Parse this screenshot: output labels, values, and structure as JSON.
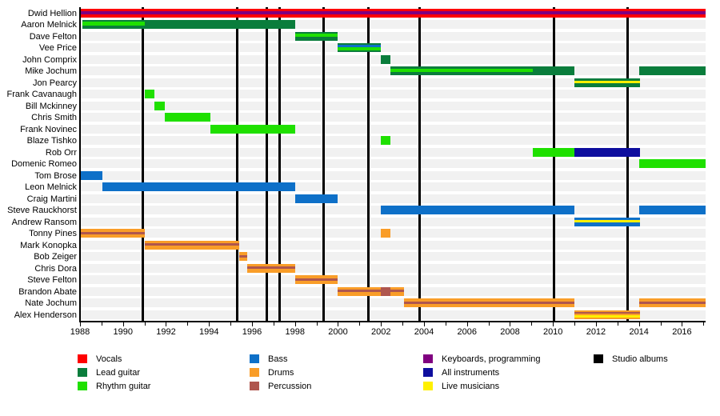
{
  "chart_data": {
    "type": "timeline",
    "description": "Band members timeline (gantt-style) with roles by color, 1988-2017, vertical black lines mark studio albums",
    "x_axis": {
      "start_year": 1988,
      "end_year": 2017.1,
      "label_years": [
        1988,
        1990,
        1992,
        1994,
        1996,
        1998,
        2000,
        2002,
        2004,
        2006,
        2008,
        2010,
        2012,
        2014,
        2016
      ],
      "minor_tick_every": 1
    },
    "colors": {
      "vocals": "#ff0000",
      "lead": "#0a7d3c",
      "rhythm": "#1fe000",
      "bass": "#0e70c8",
      "drums": "#f99d28",
      "perc": "#af564e",
      "keys": "#800080",
      "allinstr": "#0e0e9e",
      "live": "#fff000",
      "album": "#000000",
      "row_band": "#f1f1f1"
    },
    "legend": [
      {
        "label": "Vocals",
        "color": "vocals"
      },
      {
        "label": "Lead guitar",
        "color": "lead"
      },
      {
        "label": "Rhythm guitar",
        "color": "rhythm"
      },
      {
        "label": "Bass",
        "color": "bass"
      },
      {
        "label": "Drums",
        "color": "drums"
      },
      {
        "label": "Percussion",
        "color": "perc"
      },
      {
        "label": "Keyboards, programming",
        "color": "keys"
      },
      {
        "label": "All instruments",
        "color": "allinstr"
      },
      {
        "label": "Live musicians",
        "color": "live"
      },
      {
        "label": "Studio albums",
        "color": "album"
      }
    ],
    "album_lines_years": [
      1990.92,
      1995.3,
      1996.68,
      1997.3,
      1999.32,
      2001.4,
      2003.78,
      2010.05,
      2013.48
    ],
    "members": [
      {
        "name": "Dwid Hellion",
        "segments": [
          {
            "start": 1988,
            "end": 2017.1,
            "layers": [
              [
                "vocals",
                3.5
              ],
              [
                "keys",
                3.5
              ],
              [
                "vocals",
                4
              ]
            ]
          }
        ]
      },
      {
        "name": "Aaron Melnick",
        "segments": [
          {
            "start": 1988.1,
            "end": 1991,
            "layers": [
              [
                "lead",
                1.5
              ],
              [
                "rhythm",
                5
              ],
              [
                "lead",
                4.5
              ]
            ]
          },
          {
            "start": 1991,
            "end": 1998,
            "layers": [
              [
                "lead",
                11
              ]
            ]
          }
        ]
      },
      {
        "name": "Dave Felton",
        "segments": [
          {
            "start": 1998,
            "end": 2000,
            "layers": [
              [
                "lead",
                2
              ],
              [
                "rhythm",
                4
              ],
              [
                "lead",
                5
              ]
            ]
          }
        ]
      },
      {
        "name": "Vee Price",
        "segments": [
          {
            "start": 2000,
            "end": 2002,
            "layers": [
              [
                "lead",
                2
              ],
              [
                "bass",
                3
              ],
              [
                "rhythm",
                3.5
              ],
              [
                "lead",
                2.5
              ]
            ]
          }
        ]
      },
      {
        "name": "John Comprix",
        "segments": [
          {
            "start": 2002,
            "end": 2002.45,
            "layers": [
              [
                "lead",
                11
              ]
            ]
          }
        ]
      },
      {
        "name": "Mike Jochum",
        "segments": [
          {
            "start": 2002.45,
            "end": 2009.05,
            "layers": [
              [
                "lead",
                2.5
              ],
              [
                "rhythm",
                4
              ],
              [
                "lead",
                4.5
              ]
            ]
          },
          {
            "start": 2009.05,
            "end": 2011,
            "layers": [
              [
                "lead",
                11
              ]
            ]
          },
          {
            "start": 2014,
            "end": 2017.1,
            "layers": [
              [
                "lead",
                11
              ]
            ]
          }
        ]
      },
      {
        "name": "Jon Pearcy",
        "segments": [
          {
            "start": 2011,
            "end": 2014.05,
            "layers": [
              [
                "lead",
                3
              ],
              [
                "live",
                3.5
              ],
              [
                "lead",
                4.5
              ]
            ]
          }
        ]
      },
      {
        "name": "Frank Cavanaugh",
        "segments": [
          {
            "start": 1991,
            "end": 1991.45,
            "layers": [
              [
                "rhythm",
                11
              ]
            ]
          }
        ]
      },
      {
        "name": "Bill Mckinney",
        "segments": [
          {
            "start": 1991.45,
            "end": 1991.95,
            "layers": [
              [
                "rhythm",
                11
              ]
            ]
          }
        ]
      },
      {
        "name": "Chris Smith",
        "segments": [
          {
            "start": 1991.95,
            "end": 1994.05,
            "layers": [
              [
                "rhythm",
                11
              ]
            ]
          }
        ]
      },
      {
        "name": "Frank Novinec",
        "segments": [
          {
            "start": 1994.05,
            "end": 1998,
            "layers": [
              [
                "rhythm",
                11
              ]
            ]
          }
        ]
      },
      {
        "name": "Blaze Tishko",
        "segments": [
          {
            "start": 2002,
            "end": 2002.45,
            "layers": [
              [
                "rhythm",
                11
              ]
            ]
          }
        ]
      },
      {
        "name": "Rob Orr",
        "segments": [
          {
            "start": 2009.05,
            "end": 2011,
            "layers": [
              [
                "rhythm",
                11
              ]
            ]
          },
          {
            "start": 2011,
            "end": 2014.05,
            "layers": [
              [
                "allinstr",
                11
              ]
            ]
          }
        ]
      },
      {
        "name": "Domenic Romeo",
        "segments": [
          {
            "start": 2014,
            "end": 2017.1,
            "layers": [
              [
                "rhythm",
                11
              ]
            ]
          }
        ]
      },
      {
        "name": "Tom Brose",
        "segments": [
          {
            "start": 1988,
            "end": 1989.05,
            "layers": [
              [
                "bass",
                11
              ]
            ]
          }
        ]
      },
      {
        "name": "Leon Melnick",
        "segments": [
          {
            "start": 1989.05,
            "end": 1998,
            "layers": [
              [
                "bass",
                11
              ]
            ]
          }
        ]
      },
      {
        "name": "Craig Martini",
        "segments": [
          {
            "start": 1998,
            "end": 2000,
            "layers": [
              [
                "bass",
                11
              ]
            ]
          }
        ]
      },
      {
        "name": "Steve Rauckhorst",
        "segments": [
          {
            "start": 2002,
            "end": 2011,
            "layers": [
              [
                "bass",
                11
              ]
            ]
          },
          {
            "start": 2014,
            "end": 2017.1,
            "layers": [
              [
                "bass",
                11
              ]
            ]
          }
        ]
      },
      {
        "name": "Andrew Ransom",
        "segments": [
          {
            "start": 2011,
            "end": 2014.05,
            "layers": [
              [
                "bass",
                3
              ],
              [
                "live",
                3.5
              ],
              [
                "bass",
                4.5
              ]
            ]
          }
        ]
      },
      {
        "name": "Tonny Pines",
        "segments": [
          {
            "start": 1988,
            "end": 1991,
            "layers": [
              [
                "drums",
                3.5
              ],
              [
                "perc",
                3
              ],
              [
                "drums",
                4.5
              ]
            ]
          },
          {
            "start": 2002,
            "end": 2002.45,
            "layers": [
              [
                "drums",
                11
              ]
            ]
          }
        ]
      },
      {
        "name": "Mark Konopka",
        "segments": [
          {
            "start": 1991,
            "end": 1995.4,
            "layers": [
              [
                "drums",
                3.5
              ],
              [
                "perc",
                3
              ],
              [
                "drums",
                4.5
              ]
            ]
          }
        ]
      },
      {
        "name": "Bob Zeiger",
        "segments": [
          {
            "start": 1995.4,
            "end": 1995.78,
            "layers": [
              [
                "drums",
                3.5
              ],
              [
                "perc",
                3
              ],
              [
                "drums",
                4.5
              ]
            ]
          }
        ]
      },
      {
        "name": "Chris Dora",
        "segments": [
          {
            "start": 1995.78,
            "end": 1998,
            "layers": [
              [
                "drums",
                3.5
              ],
              [
                "perc",
                3
              ],
              [
                "drums",
                4.5
              ]
            ]
          }
        ]
      },
      {
        "name": "Steve Felton",
        "segments": [
          {
            "start": 1998,
            "end": 2000,
            "layers": [
              [
                "drums",
                3.5
              ],
              [
                "perc",
                3
              ],
              [
                "drums",
                4.5
              ]
            ]
          }
        ]
      },
      {
        "name": "Brandon Abate",
        "segments": [
          {
            "start": 2000,
            "end": 2003.06,
            "layers": [
              [
                "drums",
                3.5
              ],
              [
                "perc",
                3
              ],
              [
                "drums",
                4.5
              ]
            ]
          },
          {
            "start": 2002,
            "end": 2002.42,
            "layers": [
              [
                "perc",
                11
              ]
            ]
          }
        ]
      },
      {
        "name": "Nate Jochum",
        "segments": [
          {
            "start": 2003.06,
            "end": 2011,
            "layers": [
              [
                "drums",
                3.5
              ],
              [
                "perc",
                3
              ],
              [
                "drums",
                4.5
              ]
            ]
          },
          {
            "start": 2014,
            "end": 2017.1,
            "layers": [
              [
                "drums",
                3.5
              ],
              [
                "perc",
                3
              ],
              [
                "drums",
                4.5
              ]
            ]
          }
        ]
      },
      {
        "name": "Alex Henderson",
        "segments": [
          {
            "start": 2011,
            "end": 2014.05,
            "layers": [
              [
                "drums",
                2
              ],
              [
                "perc",
                2.5
              ],
              [
                "drums",
                1.5
              ],
              [
                "live",
                3
              ],
              [
                "drums",
                2
              ]
            ]
          }
        ]
      }
    ]
  }
}
